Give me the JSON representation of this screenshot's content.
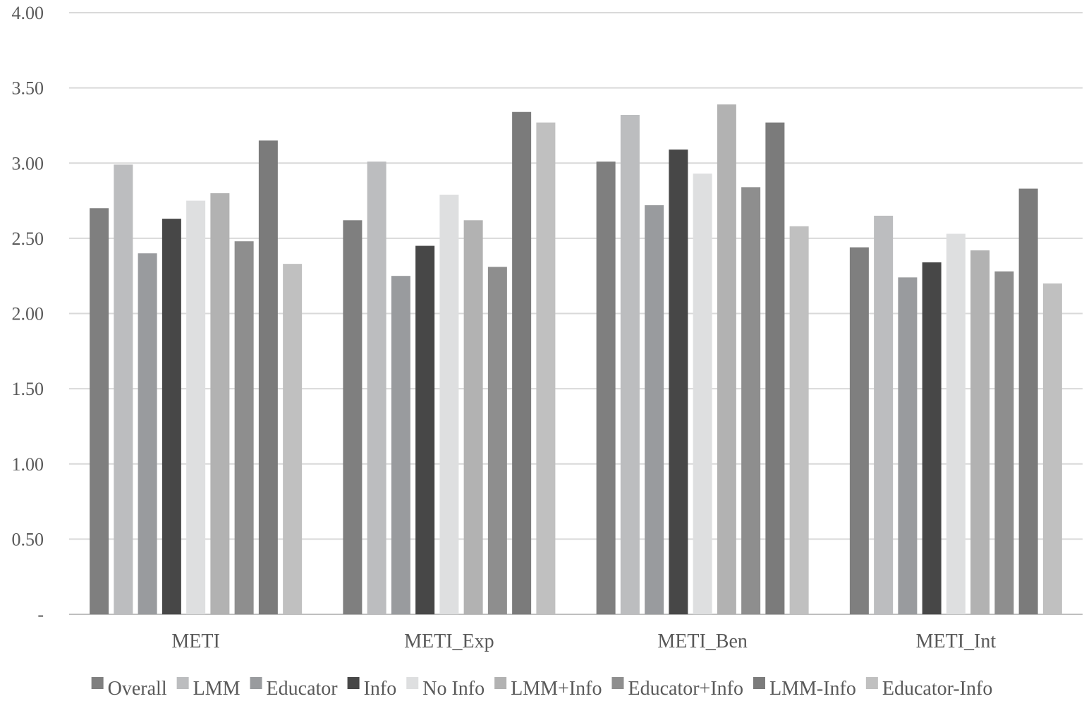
{
  "chart_data": {
    "type": "bar",
    "title": "",
    "xlabel": "",
    "ylabel": "",
    "ylim": [
      0,
      4
    ],
    "yticks": [
      0,
      0.5,
      1,
      1.5,
      2,
      2.5,
      3,
      3.5,
      4
    ],
    "ytick_labels": [
      "-",
      "0.50",
      "1.00",
      "1.50",
      "2.00",
      "2.50",
      "3.00",
      "3.50",
      "4.00"
    ],
    "grid": true,
    "legend_position": "bottom",
    "categories": [
      "METI",
      "METI_Exp",
      "METI_Ben",
      "METI_Int"
    ],
    "series": [
      {
        "name": "Overall",
        "color": "#7f7f7f",
        "values": [
          2.7,
          2.62,
          3.01,
          2.44
        ]
      },
      {
        "name": "LMM",
        "color": "#bcbdbf",
        "values": [
          2.99,
          3.01,
          3.32,
          2.65
        ]
      },
      {
        "name": "Educator",
        "color": "#999b9e",
        "values": [
          2.4,
          2.25,
          2.72,
          2.24
        ]
      },
      {
        "name": "Info",
        "color": "#474747",
        "values": [
          2.63,
          2.45,
          3.09,
          2.34
        ]
      },
      {
        "name": "No Info",
        "color": "#dedfe0",
        "values": [
          2.75,
          2.79,
          2.93,
          2.53
        ]
      },
      {
        "name": "LMM+Info",
        "color": "#b2b2b2",
        "values": [
          2.8,
          2.62,
          3.39,
          2.42
        ]
      },
      {
        "name": "Educator+Info",
        "color": "#8e8e8e",
        "values": [
          2.48,
          2.31,
          2.84,
          2.28
        ]
      },
      {
        "name": "LMM-Info",
        "color": "#7b7b7b",
        "values": [
          3.15,
          3.34,
          3.27,
          2.83
        ]
      },
      {
        "name": "Educator-Info",
        "color": "#c0c0c0",
        "values": [
          2.33,
          3.27,
          2.58,
          2.2
        ]
      }
    ]
  }
}
